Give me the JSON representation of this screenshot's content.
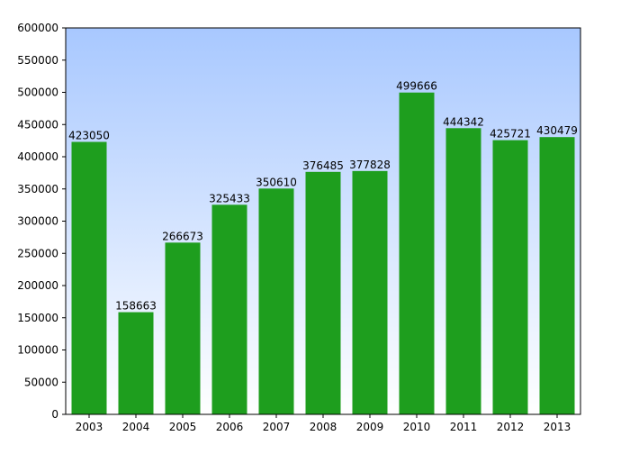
{
  "chart_data": {
    "type": "bar",
    "title": "",
    "xlabel": "",
    "ylabel": "",
    "categories": [
      "2003",
      "2004",
      "2005",
      "2006",
      "2007",
      "2008",
      "2009",
      "2010",
      "2011",
      "2012",
      "2013"
    ],
    "values": [
      423050,
      158663,
      266673,
      325433,
      350610,
      376485,
      377828,
      499666,
      444342,
      425721,
      430479
    ],
    "ylim": [
      0,
      600000
    ],
    "yticks": [
      "0",
      "50000",
      "100000",
      "150000",
      "200000",
      "250000",
      "300000",
      "350000",
      "400000",
      "450000",
      "500000",
      "550000",
      "600000"
    ],
    "grid": false,
    "legend": "none",
    "colors": {
      "bar": "#1e9e1e",
      "plot_bg_top": "#a8c8ff",
      "plot_bg_bottom": "#ffffff",
      "axis": "#000000",
      "text": "#000000"
    }
  }
}
